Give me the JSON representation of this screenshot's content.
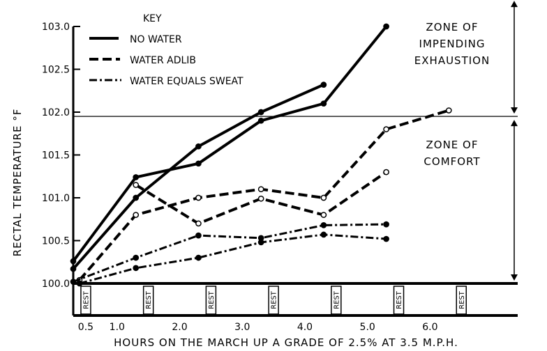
{
  "chart_data": {
    "type": "line",
    "title": "",
    "xlabel": "HOURS ON THE MARCH UP A GRADE OF 2.5% AT 3.5 M.P.H.",
    "ylabel": "RECTAL TEMPERATURE °F",
    "xlim": [
      0.3,
      7.4
    ],
    "ylim": [
      100.0,
      103.0
    ],
    "grid": false,
    "legend": {
      "title": "KEY",
      "position": "top-left",
      "entries": [
        {
          "label": "NO WATER",
          "style": "solid"
        },
        {
          "label": "WATER ADLIB",
          "style": "dashed"
        },
        {
          "label": "WATER EQUALS SWEAT",
          "style": "dashdot"
        }
      ]
    },
    "x_ticks": [
      {
        "value": 0.5,
        "label": "0.5"
      },
      {
        "value": 1.0,
        "label": "1.0"
      },
      {
        "value": 2.0,
        "label": "2.0"
      },
      {
        "value": 3.0,
        "label": "3.0"
      },
      {
        "value": 4.0,
        "label": "4.0"
      },
      {
        "value": 5.0,
        "label": "5.0"
      },
      {
        "value": 6.0,
        "label": "6.0"
      }
    ],
    "y_ticks": [
      {
        "value": 100.0,
        "label": "100.0"
      },
      {
        "value": 100.5,
        "label": "100.5"
      },
      {
        "value": 101.0,
        "label": "101.0"
      },
      {
        "value": 101.5,
        "label": "101.5"
      },
      {
        "value": 102.0,
        "label": "102.0"
      },
      {
        "value": 102.5,
        "label": "102.5"
      },
      {
        "value": 103.0,
        "label": "103.0"
      }
    ],
    "rest_periods": [
      {
        "x": 0.5,
        "label": "REST"
      },
      {
        "x": 1.5,
        "label": "REST"
      },
      {
        "x": 2.5,
        "label": "REST"
      },
      {
        "x": 3.5,
        "label": "REST"
      },
      {
        "x": 4.5,
        "label": "REST"
      },
      {
        "x": 5.5,
        "label": "REST"
      },
      {
        "x": 6.5,
        "label": "REST"
      }
    ],
    "threshold": {
      "value": 101.95
    },
    "zones": [
      {
        "label_lines": [
          "ZONE OF",
          "IMPENDING",
          "EXHAUSTION"
        ],
        "from": 101.95,
        "to": 103.3
      },
      {
        "label_lines": [
          "ZONE OF",
          "COMFORT"
        ],
        "from": 100.0,
        "to": 101.95
      }
    ],
    "series": [
      {
        "name": "NO WATER (a)",
        "style": "solid",
        "open_markers": false,
        "points": [
          [
            0.3,
            100.17
          ],
          [
            1.3,
            101.0
          ],
          [
            2.3,
            101.6
          ],
          [
            3.3,
            102.0
          ],
          [
            4.3,
            102.32
          ]
        ]
      },
      {
        "name": "NO WATER (b)",
        "style": "solid",
        "open_markers": false,
        "points": [
          [
            0.3,
            100.26
          ],
          [
            1.3,
            101.24
          ],
          [
            2.3,
            101.4
          ],
          [
            3.3,
            101.9
          ],
          [
            4.3,
            102.1
          ],
          [
            5.3,
            103.0
          ]
        ]
      },
      {
        "name": "WATER ADLIB (a)",
        "style": "dashed",
        "open_markers": true,
        "points": [
          [
            0.4,
            100.04
          ],
          [
            1.3,
            100.8
          ],
          [
            2.3,
            101.0
          ],
          [
            3.3,
            101.1
          ],
          [
            4.3,
            101.0
          ],
          [
            5.3,
            101.8
          ],
          [
            6.3,
            102.02
          ]
        ]
      },
      {
        "name": "WATER ADLIB (b)",
        "style": "dashed",
        "open_markers": true,
        "points": [
          [
            1.3,
            101.15
          ],
          [
            2.3,
            100.7
          ],
          [
            3.3,
            100.99
          ],
          [
            4.3,
            100.8
          ],
          [
            5.3,
            101.3
          ]
        ]
      },
      {
        "name": "WATER EQUALS SWEAT (a)",
        "style": "dashdot",
        "open_markers": false,
        "points": [
          [
            0.3,
            100.02
          ],
          [
            1.3,
            100.3
          ],
          [
            2.3,
            100.56
          ],
          [
            3.3,
            100.53
          ],
          [
            4.3,
            100.68
          ],
          [
            5.3,
            100.69
          ]
        ]
      },
      {
        "name": "WATER EQUALS SWEAT (b)",
        "style": "dashdot",
        "open_markers": false,
        "points": [
          [
            0.4,
            100.0
          ],
          [
            1.3,
            100.18
          ],
          [
            2.3,
            100.3
          ],
          [
            3.3,
            100.48
          ],
          [
            4.3,
            100.57
          ],
          [
            5.3,
            100.52
          ]
        ]
      }
    ]
  }
}
